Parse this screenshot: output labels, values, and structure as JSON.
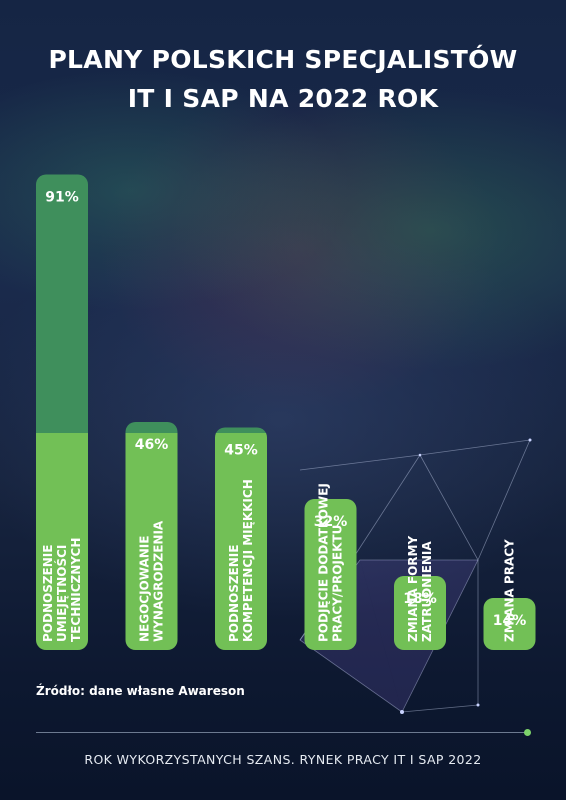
{
  "title": {
    "line1": "PLANY POLSKICH SPECJALISTÓW",
    "line2": "IT I SAP NA 2022 ROK"
  },
  "colors": {
    "bar_top": "#3f8f5c",
    "bar_bottom": "#72c056",
    "text": "#ffffff"
  },
  "chart_data": {
    "type": "bar",
    "title": "PLANY POLSKICH SPECJALISTÓW IT I SAP NA 2022 ROK",
    "xlabel": "",
    "ylabel": "",
    "grid": false,
    "ylim": [
      0,
      100
    ],
    "unit": "%",
    "categories": [
      [
        "PODNOSZENIE",
        "UMIEJĘTNOŚCI",
        "TECHNICZNYCH"
      ],
      [
        "NEGOCJOWANIE",
        "WYNAGRODZENIA"
      ],
      [
        "PODNOSZENIE",
        "KOMPETENCJI MIĘKKICH"
      ],
      [
        "PODJĘCIE DODATKOWEJ",
        "PRACY/PROJEKTU"
      ],
      [
        "ZMIANA FORMY",
        "ZATRUDNIENIA"
      ],
      [
        "ZMIANA PRACY"
      ]
    ],
    "values": [
      91,
      46,
      45,
      32,
      18,
      14
    ],
    "value_labels": [
      "91%",
      "46%",
      "45%",
      "32%",
      "18%",
      "14%"
    ]
  },
  "source": "Źródło: dane własne Awareson",
  "footer": "ROK WYKORZYSTANYCH SZANS. RYNEK PRACY IT I SAP 2022"
}
